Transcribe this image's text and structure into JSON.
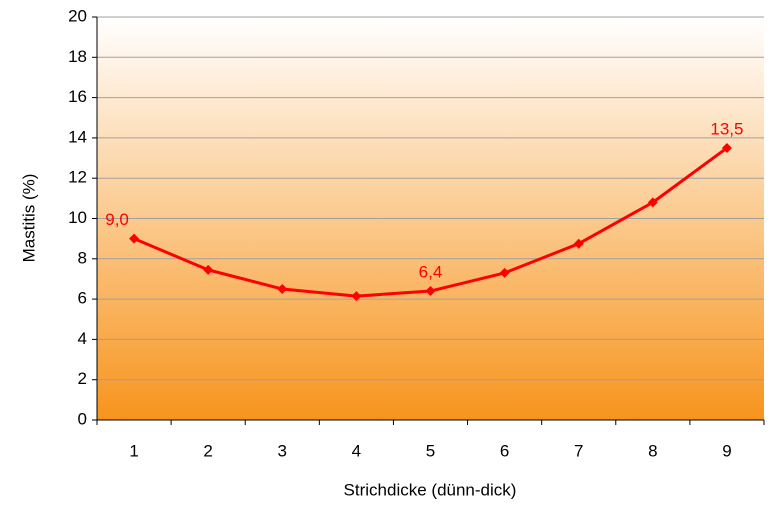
{
  "chart_data": {
    "type": "line",
    "x_label": "Strichdicke (dünn-dick)",
    "y_label": "Mastitis (%)",
    "categories": [
      "1",
      "2",
      "3",
      "4",
      "5",
      "6",
      "7",
      "8",
      "9"
    ],
    "series": [
      {
        "color": "#ff0000",
        "values": [
          9.0,
          7.45,
          6.5,
          6.15,
          6.4,
          7.3,
          8.75,
          10.8,
          13.5
        ],
        "value_labels": [
          "9,0",
          null,
          null,
          null,
          "6,4",
          null,
          null,
          null,
          "13,5"
        ]
      }
    ],
    "ylim": [
      0,
      20
    ],
    "yticks": [
      0,
      2,
      4,
      6,
      8,
      10,
      12,
      14,
      16,
      18,
      20
    ],
    "grid": true
  }
}
